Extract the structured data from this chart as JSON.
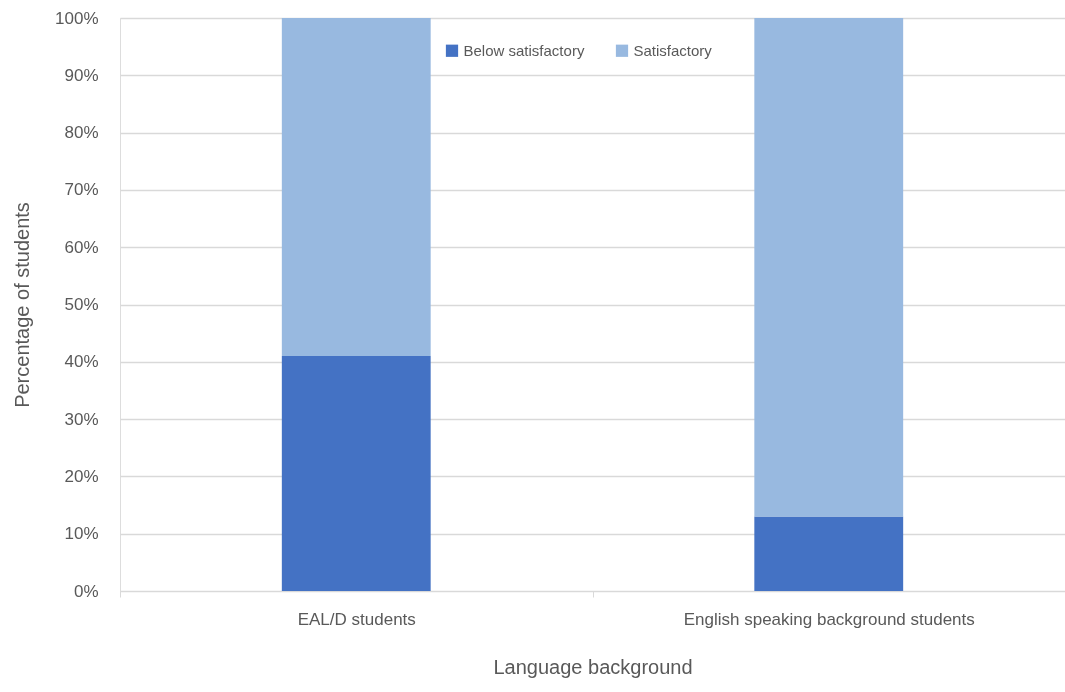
{
  "chart_data": {
    "type": "bar",
    "stacked": true,
    "xlabel": "Language background",
    "ylabel": "Percentage of students",
    "categories": [
      "EAL/D students",
      "English speaking background students"
    ],
    "series": [
      {
        "name": "Below satisfactory",
        "color": "#4472c4",
        "values": [
          41,
          13
        ]
      },
      {
        "name": "Satisfactory",
        "color": "#98b9e0",
        "values": [
          59,
          87
        ]
      }
    ],
    "ylim": [
      0,
      100
    ],
    "yticks": [
      {
        "value": 0,
        "label": "0%"
      },
      {
        "value": 10,
        "label": "10%"
      },
      {
        "value": 20,
        "label": "20%"
      },
      {
        "value": 30,
        "label": "30%"
      },
      {
        "value": 40,
        "label": "40%"
      },
      {
        "value": 50,
        "label": "50%"
      },
      {
        "value": 60,
        "label": "60%"
      },
      {
        "value": 70,
        "label": "70%"
      },
      {
        "value": 80,
        "label": "80%"
      },
      {
        "value": 90,
        "label": "90%"
      },
      {
        "value": 100,
        "label": "100%"
      }
    ],
    "grid": "y",
    "legend": "top"
  }
}
